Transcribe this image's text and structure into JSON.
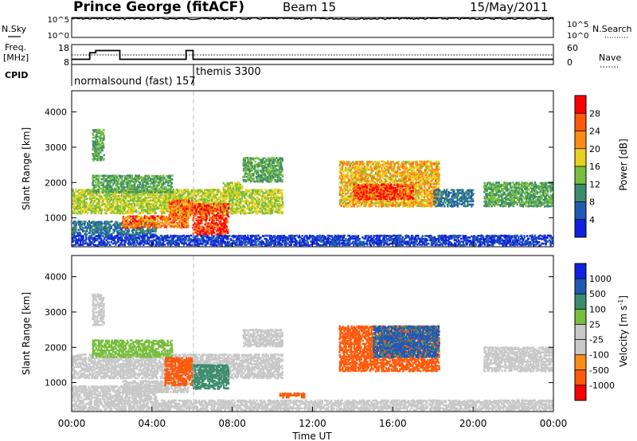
{
  "header": {
    "station": "Prince George (fitACF)",
    "beam": "Beam 15",
    "date": "15/May/2011"
  },
  "labels": {
    "nsky": "N.Sky",
    "nsearch": "N.Search",
    "freq_line1": "Freq.",
    "freq_line2": "[MHz]",
    "nave": "Nave",
    "cpid": "CPID",
    "cpid_mode1": "normalsound (fast) 157",
    "cpid_mode2": "themis 3300",
    "power_colorbar": "Power [dB]",
    "velocity_colorbar_main": "Velocity [m s",
    "velocity_colorbar_exp": "-1",
    "velocity_colorbar_end": "]"
  },
  "colors": {
    "power": [
      "#1020e0",
      "#1e5ab4",
      "#3c8c6e",
      "#78be3c",
      "#e6d21e",
      "#ff8c14",
      "#ff5a0a",
      "#ff0000"
    ],
    "velocity": [
      "#ff0000",
      "#ff5a0a",
      "#ff8c14",
      "#c8c8c8",
      "#c8c8c8",
      "#78be3c",
      "#3c8c6e",
      "#1e5ab4",
      "#1020e0"
    ],
    "ground_scatter": "#c8c8c8"
  },
  "chart_data": [
    {
      "type": "line",
      "name": "noise",
      "x": [
        0,
        0.5,
        1,
        2,
        3,
        4,
        5,
        6,
        7,
        8,
        9,
        10,
        12,
        14,
        16,
        18,
        20,
        22,
        24
      ],
      "series": [
        {
          "name": "N.Sky",
          "values": [
            100000.0,
            100000.0,
            100000.0,
            100000.0,
            100000.0,
            100000.0,
            100000.0,
            100000.0,
            100000.0,
            100000.0,
            100000.0,
            100000.0,
            100000.0,
            100000.0,
            100000.0,
            100000.0,
            100000.0,
            100000.0,
            100000.0
          ]
        }
      ],
      "yticks_left": [
        "10^5",
        "10^0"
      ],
      "yticks_right": [
        "10^5",
        "10^0"
      ]
    },
    {
      "type": "line",
      "name": "frequency",
      "x": [
        0,
        0.3,
        0.9,
        1.2,
        2.0,
        2.4,
        5.6,
        5.7,
        6.0,
        6.05,
        24
      ],
      "series": [
        {
          "name": "Freq.",
          "values": [
            10.6,
            10.6,
            13.9,
            15.0,
            15.0,
            10.6,
            10.6,
            15.0,
            15.0,
            10.6,
            10.6
          ]
        },
        {
          "name": "Nave",
          "values": [
            30,
            30,
            30,
            30,
            30,
            30,
            30,
            30,
            30,
            30,
            30
          ]
        }
      ],
      "yticks_left": [
        "18",
        "8"
      ],
      "yticks_right": [
        "60",
        "0"
      ]
    },
    {
      "type": "heatmap",
      "name": "power",
      "xlabel": "",
      "ylabel": "Slant Range [km]",
      "xlim": [
        0,
        24
      ],
      "ylim": [
        180,
        4600
      ],
      "yticks": [
        1000,
        2000,
        3000,
        4000
      ],
      "colorbar_ticks": [
        4,
        8,
        12,
        16,
        20,
        24,
        28
      ],
      "scatter_regions": [
        {
          "t0": 0.0,
          "t1": 10.5,
          "r0": 1100,
          "r1": 1800,
          "value": 16
        },
        {
          "t0": 0.0,
          "t1": 4.2,
          "r0": 500,
          "r1": 900,
          "value": 8
        },
        {
          "t0": 1.0,
          "t1": 5.0,
          "r0": 1700,
          "r1": 2200,
          "value": 12
        },
        {
          "t0": 1.0,
          "t1": 1.6,
          "r0": 2600,
          "r1": 3500,
          "value": 12
        },
        {
          "t0": 2.5,
          "t1": 5.8,
          "r0": 700,
          "r1": 1050,
          "value": 24
        },
        {
          "t0": 4.8,
          "t1": 6.0,
          "r0": 1000,
          "r1": 1500,
          "value": 24
        },
        {
          "t0": 6.0,
          "t1": 7.8,
          "r0": 500,
          "r1": 1400,
          "value": 28
        },
        {
          "t0": 7.5,
          "t1": 8.5,
          "r0": 1600,
          "r1": 2000,
          "value": 16
        },
        {
          "t0": 8.5,
          "t1": 10.5,
          "r0": 2000,
          "r1": 2700,
          "value": 12
        },
        {
          "t0": 13.3,
          "t1": 18.3,
          "r0": 1300,
          "r1": 2600,
          "value": 20
        },
        {
          "t0": 14.0,
          "t1": 17.0,
          "r0": 1500,
          "r1": 1950,
          "value": 28
        },
        {
          "t0": 18.0,
          "t1": 20.0,
          "r0": 1300,
          "r1": 1800,
          "value": 8
        },
        {
          "t0": 20.5,
          "t1": 24.0,
          "r0": 1300,
          "r1": 2000,
          "value": 12
        },
        {
          "t0": 0.0,
          "t1": 24.0,
          "r0": 200,
          "r1": 500,
          "value": 4
        }
      ]
    },
    {
      "type": "heatmap",
      "name": "velocity",
      "xlabel": "Time UT",
      "ylabel": "Slant Range [km]",
      "xlim": [
        0,
        24
      ],
      "ylim": [
        180,
        4600
      ],
      "yticks": [
        1000,
        2000,
        3000,
        4000
      ],
      "xticks": [
        "00:00",
        "04:00",
        "08:00",
        "12:00",
        "16:00",
        "20:00",
        "00:00"
      ],
      "colorbar_ticks": [
        1000,
        500,
        100,
        25,
        -25,
        -100,
        -500,
        -1000
      ],
      "scatter_regions": [
        {
          "t0": 0.0,
          "t1": 10.5,
          "r0": 1100,
          "r1": 1800,
          "value": 0
        },
        {
          "t0": 0.0,
          "t1": 4.2,
          "r0": 500,
          "r1": 900,
          "value": 0
        },
        {
          "t0": 1.0,
          "t1": 5.0,
          "r0": 1700,
          "r1": 2200,
          "value": 80
        },
        {
          "t0": 1.0,
          "t1": 1.6,
          "r0": 2600,
          "r1": 3500,
          "value": 0
        },
        {
          "t0": 2.5,
          "t1": 5.8,
          "r0": 700,
          "r1": 1050,
          "value": 0
        },
        {
          "t0": 4.6,
          "t1": 6.0,
          "r0": 900,
          "r1": 1700,
          "value": -300
        },
        {
          "t0": 6.0,
          "t1": 7.8,
          "r0": 800,
          "r1": 1500,
          "value": 200
        },
        {
          "t0": 8.5,
          "t1": 10.5,
          "r0": 2000,
          "r1": 2500,
          "value": 0
        },
        {
          "t0": 10.3,
          "t1": 11.6,
          "r0": 550,
          "r1": 700,
          "value": -300
        },
        {
          "t0": 13.3,
          "t1": 18.3,
          "r0": 1300,
          "r1": 2600,
          "value": -300
        },
        {
          "t0": 15.0,
          "t1": 18.3,
          "r0": 1700,
          "r1": 2600,
          "value": 600
        },
        {
          "t0": 20.5,
          "t1": 24.0,
          "r0": 1300,
          "r1": 2000,
          "value": 0
        },
        {
          "t0": 0.0,
          "t1": 24.0,
          "r0": 200,
          "r1": 500,
          "value": 0
        }
      ]
    }
  ]
}
